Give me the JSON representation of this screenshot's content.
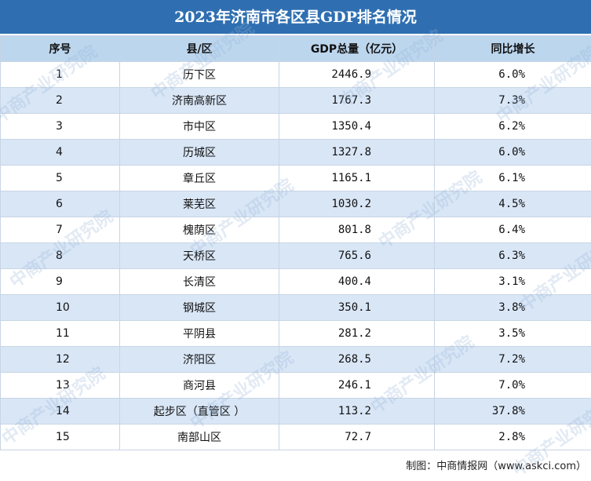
{
  "title": "2023年济南市各区县GDP排名情况",
  "table": {
    "header": [
      "序号",
      "县/区",
      "GDP总量（亿元）",
      "同比增长"
    ],
    "rows": [
      [
        "1",
        "历下区",
        "2446.9",
        "6.0%"
      ],
      [
        "2",
        "济南高新区",
        "1767.3",
        "7.3%"
      ],
      [
        "3",
        "市中区",
        "1350.4",
        "6.2%"
      ],
      [
        "4",
        "历城区",
        "1327.8",
        "6.0%"
      ],
      [
        "5",
        "章丘区",
        "1165.1",
        "6.1%"
      ],
      [
        "6",
        "莱芜区",
        "1030.2",
        "4.5%"
      ],
      [
        "7",
        "槐荫区",
        "801.8",
        "6.4%"
      ],
      [
        "8",
        "天桥区",
        "765.6",
        "6.3%"
      ],
      [
        "9",
        "长清区",
        "400.4",
        "3.1%"
      ],
      [
        "10",
        "钢城区",
        "350.1",
        "3.8%"
      ],
      [
        "11",
        "平阴县",
        "281.2",
        "3.5%"
      ],
      [
        "12",
        "济阳区",
        "268.5",
        "7.2%"
      ],
      [
        "13",
        "商河县",
        "246.1",
        "7.0%"
      ],
      [
        "14",
        "起步区（直管区 ）",
        "113.2",
        "37.8%"
      ],
      [
        "15",
        "南部山区",
        "72.7",
        "2.8%"
      ]
    ]
  },
  "watermark": "中商产业研究院",
  "footer": "制图：中商情报网（www.askci.com）"
}
